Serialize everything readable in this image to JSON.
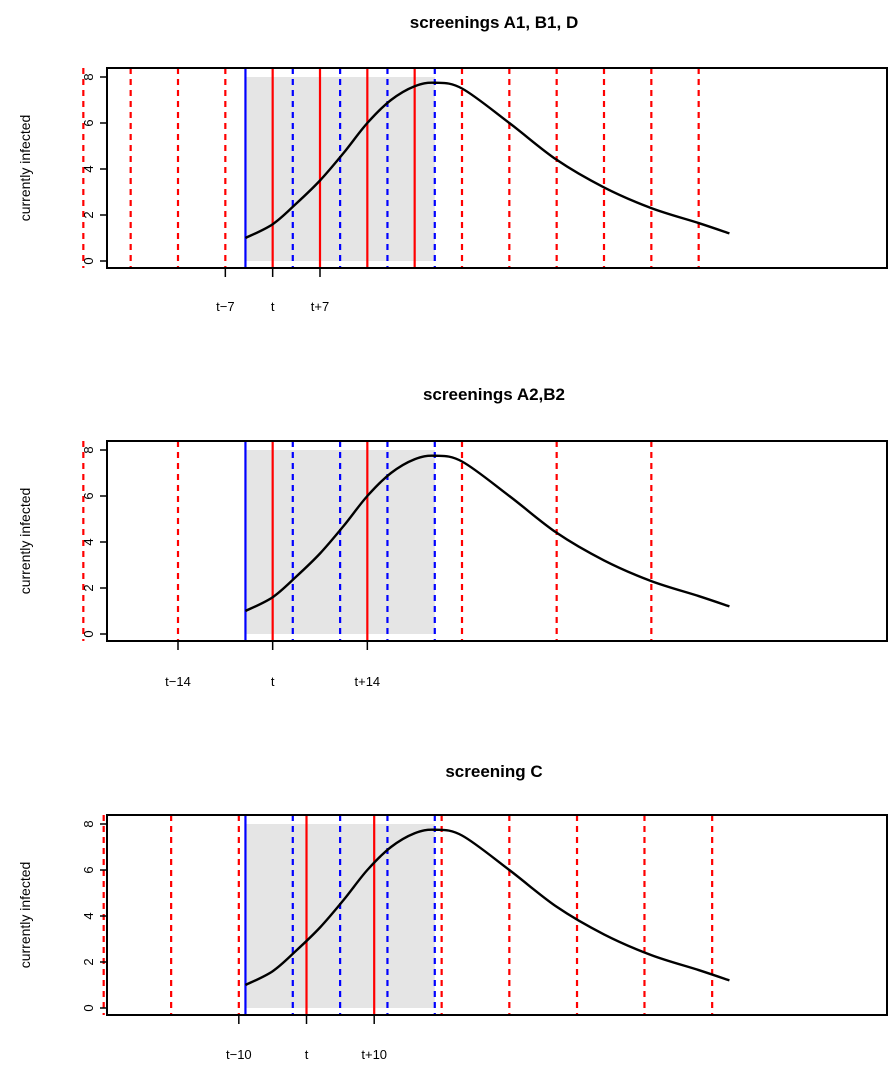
{
  "chart_data": [
    {
      "type": "line",
      "title": "screenings A1, B1, D",
      "ylabel": "currently infected",
      "ylim": [
        0,
        8
      ],
      "yticks": [
        0,
        2,
        4,
        6,
        8
      ],
      "xlim": [
        -7,
        26
      ],
      "x_tick_positions": [
        -2,
        0,
        2
      ],
      "x_tick_labels": [
        "t−7",
        "t",
        "t+7"
      ],
      "shaded_interval": [
        -1.15,
        6.85
      ],
      "solid_blue_lines": [
        -1.15
      ],
      "solid_red_lines": [
        0,
        2,
        4,
        6
      ],
      "dashed_blue_lines": [
        0.85,
        2.85,
        4.85,
        6.85
      ],
      "dashed_red_lines": [
        -4,
        -6,
        -8,
        -2,
        8,
        10,
        12,
        14,
        16,
        18
      ],
      "curve": {
        "x": [
          -1.15,
          0,
          1,
          2,
          3,
          4,
          5,
          6,
          6.85,
          8,
          10,
          12,
          14,
          16,
          18,
          19.3
        ],
        "y": [
          1.0,
          1.6,
          2.5,
          3.5,
          4.7,
          6.0,
          7.0,
          7.6,
          7.75,
          7.5,
          6.0,
          4.4,
          3.2,
          2.3,
          1.65,
          1.2
        ]
      },
      "grid": false
    },
    {
      "type": "line",
      "title": "screenings A2,B2",
      "ylabel": "currently infected",
      "ylim": [
        0,
        8
      ],
      "yticks": [
        0,
        2,
        4,
        6,
        8
      ],
      "xlim": [
        -7,
        26
      ],
      "x_tick_positions": [
        -4,
        0,
        4
      ],
      "x_tick_labels": [
        "t−14",
        "t",
        "t+14"
      ],
      "shaded_interval": [
        -1.15,
        6.85
      ],
      "solid_blue_lines": [
        -1.15
      ],
      "solid_red_lines": [
        0,
        4
      ],
      "dashed_blue_lines": [
        0.85,
        2.85,
        4.85,
        6.85
      ],
      "dashed_red_lines": [
        -8,
        -4,
        8,
        12,
        16
      ],
      "curve": {
        "x": [
          -1.15,
          0,
          1,
          2,
          3,
          4,
          5,
          6,
          6.85,
          8,
          10,
          12,
          14,
          16,
          18,
          19.3
        ],
        "y": [
          1.0,
          1.6,
          2.5,
          3.5,
          4.7,
          6.0,
          7.0,
          7.6,
          7.75,
          7.5,
          6.0,
          4.4,
          3.2,
          2.3,
          1.65,
          1.2
        ]
      },
      "grid": false
    },
    {
      "type": "line",
      "title": "screening C",
      "ylabel": "currently infected",
      "ylim": [
        0,
        8
      ],
      "yticks": [
        0,
        2,
        4,
        6,
        8
      ],
      "xlim": [
        -7,
        26
      ],
      "x_tick_positions": [
        -1.43,
        1.43,
        4.29
      ],
      "x_tick_labels": [
        "t−10",
        "t",
        "t+10"
      ],
      "shaded_interval": [
        -1.15,
        6.85
      ],
      "solid_blue_lines": [
        -1.15
      ],
      "solid_red_lines": [
        1.43,
        4.29
      ],
      "dashed_blue_lines": [
        0.85,
        2.85,
        4.85,
        6.85
      ],
      "dashed_red_lines": [
        -1.43,
        -4.29,
        -7.14,
        7.14,
        10.0,
        12.86,
        15.71,
        18.57
      ],
      "curve": {
        "x": [
          -1.15,
          0,
          1,
          2,
          3,
          4,
          5,
          6,
          6.85,
          8,
          10,
          12,
          14,
          16,
          18,
          19.3
        ],
        "y": [
          1.0,
          1.6,
          2.5,
          3.5,
          4.7,
          6.0,
          7.0,
          7.6,
          7.75,
          7.5,
          6.0,
          4.4,
          3.2,
          2.3,
          1.65,
          1.2
        ]
      },
      "grid": false
    }
  ]
}
